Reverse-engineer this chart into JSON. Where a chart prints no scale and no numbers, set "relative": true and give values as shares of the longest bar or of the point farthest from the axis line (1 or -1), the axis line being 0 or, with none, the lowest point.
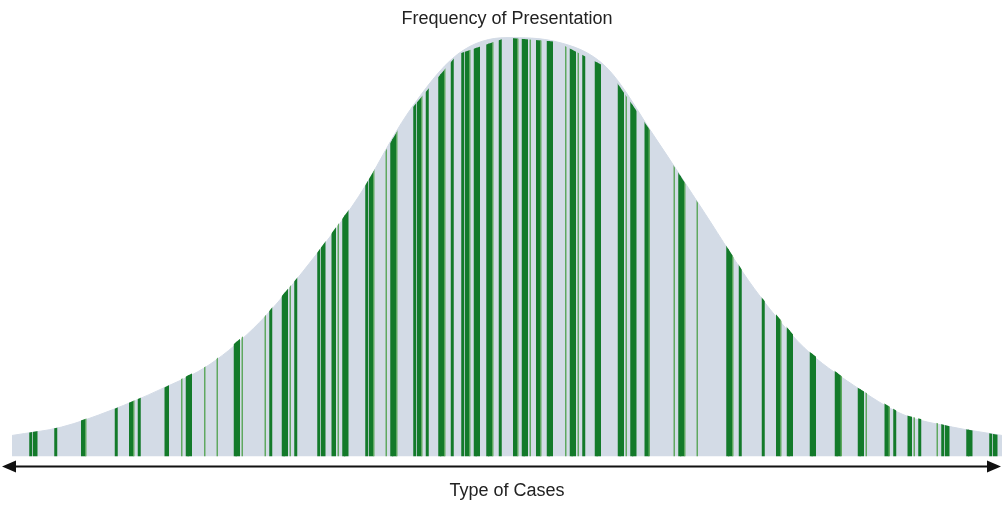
{
  "chart_data": {
    "type": "area",
    "title": "Frequency of Presentation",
    "xlabel": "Type of Cases",
    "relative": true,
    "tick_labels": false,
    "grid": false,
    "legend": false,
    "color": "#d3dbe6",
    "categories": [
      null,
      null,
      null,
      null,
      null,
      null,
      null,
      null,
      null,
      null,
      null,
      null,
      null,
      null,
      null,
      null,
      null,
      null,
      null,
      null,
      null
    ],
    "values": [
      0.05,
      0.07,
      0.11,
      0.16,
      0.22,
      0.32,
      0.46,
      0.62,
      0.82,
      0.96,
      1.0,
      0.99,
      0.93,
      0.76,
      0.58,
      0.4,
      0.26,
      0.17,
      0.1,
      0.07,
      0.05
    ]
  }
}
